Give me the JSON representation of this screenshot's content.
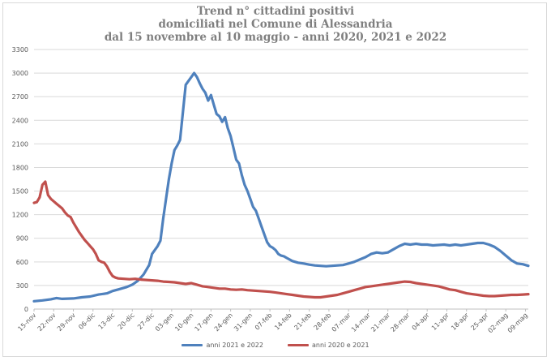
{
  "title_lines": [
    "Trend n° cittadini positivi",
    "domiciliati nel Comune di Alessandria",
    "dal 15 novembre al 10 maggio - anni 2020, 2021 e 2022"
  ],
  "chart_data": {
    "type": "line",
    "title": "Trend n° cittadini positivi domiciliati nel Comune di Alessandria dal 15 novembre al 10 maggio - anni 2020, 2021 e 2022",
    "ylim": [
      0,
      3300
    ],
    "yticks": [
      0,
      300,
      600,
      900,
      1200,
      1500,
      1800,
      2100,
      2400,
      2700,
      3000,
      3300
    ],
    "x_days": 176,
    "xticks": [
      {
        "day": 0,
        "label": "15-nov"
      },
      {
        "day": 7,
        "label": "22-nov"
      },
      {
        "day": 14,
        "label": "29-nov"
      },
      {
        "day": 21,
        "label": "06-dic"
      },
      {
        "day": 28,
        "label": "13-dic"
      },
      {
        "day": 35,
        "label": "20-dic"
      },
      {
        "day": 42,
        "label": "27-dic"
      },
      {
        "day": 49,
        "label": "03-gen"
      },
      {
        "day": 56,
        "label": "10-gen"
      },
      {
        "day": 63,
        "label": "17-gen"
      },
      {
        "day": 70,
        "label": "24-gen"
      },
      {
        "day": 77,
        "label": "31-gen"
      },
      {
        "day": 84,
        "label": "07-feb"
      },
      {
        "day": 91,
        "label": "14-feb"
      },
      {
        "day": 98,
        "label": "21-feb"
      },
      {
        "day": 105,
        "label": "28-feb"
      },
      {
        "day": 112,
        "label": "07-mar"
      },
      {
        "day": 119,
        "label": "14-mar"
      },
      {
        "day": 126,
        "label": "21-mar"
      },
      {
        "day": 133,
        "label": "28-mar"
      },
      {
        "day": 140,
        "label": "04-apr"
      },
      {
        "day": 147,
        "label": "11-apr"
      },
      {
        "day": 154,
        "label": "18-apr"
      },
      {
        "day": 161,
        "label": "25-apr"
      },
      {
        "day": 168,
        "label": "02-mag"
      },
      {
        "day": 175,
        "label": "09-mag"
      }
    ],
    "grid": true,
    "legend_position": "bottom",
    "series": [
      {
        "name": "anni 2021 e 2022",
        "color": "#4f81bd",
        "points": [
          [
            0,
            100
          ],
          [
            3,
            110
          ],
          [
            6,
            125
          ],
          [
            8,
            140
          ],
          [
            10,
            130
          ],
          [
            14,
            135
          ],
          [
            17,
            150
          ],
          [
            20,
            160
          ],
          [
            23,
            185
          ],
          [
            26,
            200
          ],
          [
            28,
            230
          ],
          [
            30,
            250
          ],
          [
            33,
            280
          ],
          [
            35,
            310
          ],
          [
            37,
            360
          ],
          [
            39,
            440
          ],
          [
            41,
            560
          ],
          [
            42,
            700
          ],
          [
            44,
            800
          ],
          [
            45,
            870
          ],
          [
            46,
            1150
          ],
          [
            47,
            1400
          ],
          [
            48,
            1650
          ],
          [
            49,
            1850
          ],
          [
            50,
            2020
          ],
          [
            51,
            2080
          ],
          [
            52,
            2150
          ],
          [
            53,
            2500
          ],
          [
            54,
            2850
          ],
          [
            55,
            2900
          ],
          [
            56,
            2950
          ],
          [
            57,
            3000
          ],
          [
            58,
            2950
          ],
          [
            59,
            2870
          ],
          [
            60,
            2800
          ],
          [
            61,
            2750
          ],
          [
            62,
            2650
          ],
          [
            63,
            2720
          ],
          [
            64,
            2600
          ],
          [
            65,
            2480
          ],
          [
            66,
            2450
          ],
          [
            67,
            2380
          ],
          [
            68,
            2440
          ],
          [
            69,
            2300
          ],
          [
            70,
            2200
          ],
          [
            71,
            2050
          ],
          [
            72,
            1900
          ],
          [
            73,
            1850
          ],
          [
            74,
            1700
          ],
          [
            75,
            1580
          ],
          [
            76,
            1500
          ],
          [
            77,
            1400
          ],
          [
            78,
            1300
          ],
          [
            79,
            1250
          ],
          [
            80,
            1150
          ],
          [
            81,
            1050
          ],
          [
            82,
            950
          ],
          [
            83,
            850
          ],
          [
            84,
            800
          ],
          [
            85,
            780
          ],
          [
            86,
            750
          ],
          [
            87,
            700
          ],
          [
            88,
            680
          ],
          [
            89,
            670
          ],
          [
            90,
            650
          ],
          [
            92,
            610
          ],
          [
            94,
            590
          ],
          [
            96,
            580
          ],
          [
            98,
            565
          ],
          [
            100,
            555
          ],
          [
            102,
            550
          ],
          [
            104,
            545
          ],
          [
            106,
            550
          ],
          [
            108,
            555
          ],
          [
            110,
            560
          ],
          [
            112,
            580
          ],
          [
            114,
            600
          ],
          [
            116,
            630
          ],
          [
            118,
            660
          ],
          [
            120,
            700
          ],
          [
            122,
            720
          ],
          [
            124,
            710
          ],
          [
            126,
            720
          ],
          [
            128,
            760
          ],
          [
            130,
            800
          ],
          [
            132,
            830
          ],
          [
            134,
            820
          ],
          [
            136,
            830
          ],
          [
            138,
            820
          ],
          [
            140,
            820
          ],
          [
            142,
            810
          ],
          [
            144,
            815
          ],
          [
            146,
            820
          ],
          [
            148,
            810
          ],
          [
            150,
            820
          ],
          [
            152,
            810
          ],
          [
            154,
            820
          ],
          [
            156,
            830
          ],
          [
            158,
            840
          ],
          [
            160,
            840
          ],
          [
            162,
            820
          ],
          [
            164,
            790
          ],
          [
            166,
            740
          ],
          [
            168,
            680
          ],
          [
            170,
            620
          ],
          [
            172,
            580
          ],
          [
            174,
            570
          ],
          [
            176,
            550
          ]
        ]
      },
      {
        "name": "anni 2020 e 2021",
        "color": "#c0504d",
        "points": [
          [
            0,
            1350
          ],
          [
            1,
            1360
          ],
          [
            2,
            1420
          ],
          [
            3,
            1580
          ],
          [
            4,
            1620
          ],
          [
            5,
            1450
          ],
          [
            6,
            1400
          ],
          [
            7,
            1370
          ],
          [
            8,
            1340
          ],
          [
            9,
            1310
          ],
          [
            10,
            1280
          ],
          [
            11,
            1230
          ],
          [
            12,
            1190
          ],
          [
            13,
            1170
          ],
          [
            14,
            1100
          ],
          [
            15,
            1040
          ],
          [
            16,
            980
          ],
          [
            17,
            930
          ],
          [
            18,
            880
          ],
          [
            19,
            840
          ],
          [
            20,
            800
          ],
          [
            21,
            760
          ],
          [
            22,
            700
          ],
          [
            23,
            620
          ],
          [
            24,
            600
          ],
          [
            25,
            590
          ],
          [
            26,
            540
          ],
          [
            27,
            470
          ],
          [
            28,
            420
          ],
          [
            29,
            400
          ],
          [
            30,
            390
          ],
          [
            32,
            385
          ],
          [
            34,
            380
          ],
          [
            36,
            385
          ],
          [
            38,
            375
          ],
          [
            40,
            370
          ],
          [
            42,
            365
          ],
          [
            44,
            360
          ],
          [
            46,
            350
          ],
          [
            48,
            345
          ],
          [
            50,
            340
          ],
          [
            52,
            330
          ],
          [
            54,
            320
          ],
          [
            56,
            330
          ],
          [
            58,
            310
          ],
          [
            60,
            290
          ],
          [
            62,
            280
          ],
          [
            64,
            270
          ],
          [
            66,
            260
          ],
          [
            68,
            260
          ],
          [
            70,
            250
          ],
          [
            72,
            245
          ],
          [
            74,
            250
          ],
          [
            76,
            240
          ],
          [
            78,
            235
          ],
          [
            80,
            230
          ],
          [
            82,
            225
          ],
          [
            84,
            220
          ],
          [
            86,
            210
          ],
          [
            88,
            200
          ],
          [
            90,
            190
          ],
          [
            92,
            180
          ],
          [
            94,
            170
          ],
          [
            96,
            160
          ],
          [
            98,
            155
          ],
          [
            100,
            150
          ],
          [
            102,
            150
          ],
          [
            104,
            160
          ],
          [
            106,
            170
          ],
          [
            108,
            180
          ],
          [
            110,
            200
          ],
          [
            112,
            220
          ],
          [
            114,
            240
          ],
          [
            116,
            260
          ],
          [
            118,
            280
          ],
          [
            120,
            290
          ],
          [
            122,
            300
          ],
          [
            124,
            310
          ],
          [
            126,
            320
          ],
          [
            128,
            330
          ],
          [
            130,
            340
          ],
          [
            132,
            350
          ],
          [
            134,
            345
          ],
          [
            136,
            330
          ],
          [
            138,
            320
          ],
          [
            140,
            310
          ],
          [
            142,
            300
          ],
          [
            144,
            290
          ],
          [
            146,
            270
          ],
          [
            148,
            250
          ],
          [
            150,
            240
          ],
          [
            152,
            220
          ],
          [
            154,
            200
          ],
          [
            156,
            190
          ],
          [
            158,
            180
          ],
          [
            160,
            170
          ],
          [
            162,
            165
          ],
          [
            164,
            165
          ],
          [
            166,
            170
          ],
          [
            168,
            175
          ],
          [
            170,
            180
          ],
          [
            172,
            180
          ],
          [
            174,
            185
          ],
          [
            176,
            190
          ]
        ]
      }
    ]
  }
}
